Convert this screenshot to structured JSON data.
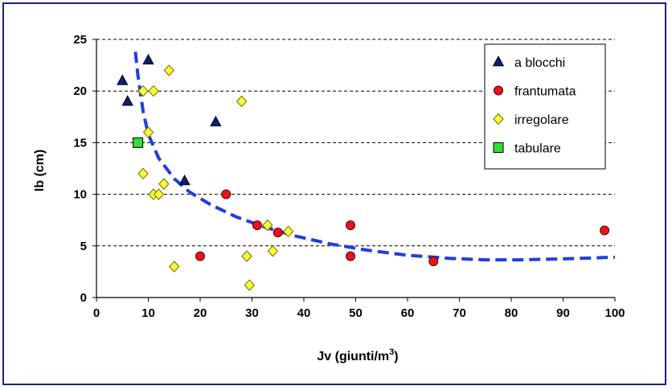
{
  "chart_data": {
    "type": "scatter",
    "xlabel": "Jv (giunti/m",
    "xlabel_sup": "3",
    "xlabel_close": ")",
    "ylabel": "Ib (cm)",
    "xlim": [
      0,
      100
    ],
    "ylim": [
      0,
      25
    ],
    "x_ticks": [
      "0",
      "10",
      "20",
      "30",
      "40",
      "50",
      "60",
      "70",
      "80",
      "90",
      "100"
    ],
    "y_ticks": [
      "0",
      "5",
      "10",
      "15",
      "20",
      "25"
    ],
    "grid": "horizontal dashed",
    "legend_position": "top-right",
    "series": [
      {
        "name": "a blocchi",
        "marker": "triangle",
        "color": "#0a1f6e",
        "points": [
          [
            5,
            21
          ],
          [
            6,
            19
          ],
          [
            10,
            23
          ],
          [
            17,
            11.3
          ],
          [
            23,
            17
          ]
        ]
      },
      {
        "name": "frantumata",
        "marker": "circle",
        "color": "#e8141b",
        "points": [
          [
            20,
            4
          ],
          [
            25,
            10
          ],
          [
            31,
            7
          ],
          [
            35,
            6.3
          ],
          [
            49,
            7
          ],
          [
            49,
            4
          ],
          [
            65,
            3.5
          ],
          [
            98,
            6.5
          ]
        ]
      },
      {
        "name": "irregolare",
        "marker": "diamond",
        "color": "#ffff33",
        "points": [
          [
            9,
            20
          ],
          [
            11,
            20
          ],
          [
            14,
            22
          ],
          [
            10,
            16
          ],
          [
            28,
            19
          ],
          [
            9,
            12
          ],
          [
            11,
            10
          ],
          [
            12,
            10
          ],
          [
            13,
            11
          ],
          [
            15,
            3
          ],
          [
            29,
            4
          ],
          [
            29.5,
            1.2
          ],
          [
            33,
            7
          ],
          [
            34,
            4.5
          ],
          [
            37,
            6.4
          ]
        ]
      },
      {
        "name": "tabulare",
        "marker": "square",
        "color": "#33dd33",
        "points": [
          [
            8,
            15
          ]
        ]
      }
    ],
    "trendline": {
      "style": "dashed",
      "color": "#1f3de0",
      "points": [
        [
          7.5,
          23.8
        ],
        [
          8,
          21.5
        ],
        [
          9,
          18
        ],
        [
          10,
          15.8
        ],
        [
          12,
          13.5
        ],
        [
          15,
          11.5
        ],
        [
          18,
          10.2
        ],
        [
          22,
          9
        ],
        [
          27,
          7.8
        ],
        [
          32,
          6.9
        ],
        [
          38,
          6
        ],
        [
          45,
          5.2
        ],
        [
          52,
          4.6
        ],
        [
          60,
          4.1
        ],
        [
          68,
          3.8
        ],
        [
          75,
          3.65
        ],
        [
          82,
          3.65
        ],
        [
          90,
          3.75
        ],
        [
          100,
          3.9
        ]
      ]
    }
  }
}
